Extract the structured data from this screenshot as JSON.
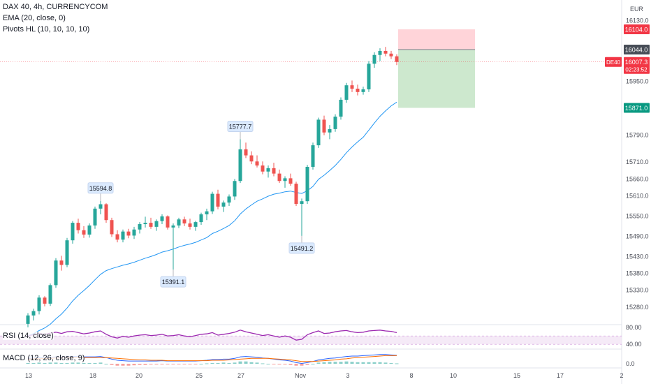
{
  "header": {
    "symbol_line": "DAX 40, 4h, CURRENCYCOM",
    "ema_line": "EMA (20, close, 0)",
    "pivots_line": "Pivots HL (10, 10, 10, 10)",
    "currency": "EUR"
  },
  "colors": {
    "up": "#26a69a",
    "down": "#ef5350",
    "ema": "#2196f3",
    "rsi": "#9c27b0",
    "macd": "#2962ff",
    "signal": "#ff6d00",
    "target_fill": "#c8e6c9",
    "stop_fill": "#ffcdd2",
    "target_tag": "#089981",
    "stop_tag": "#f23645",
    "entry_tag": "#474d57",
    "price_tag": "#f23645"
  },
  "price_axis": {
    "ticks": [
      "16130.0",
      "15950.0",
      "15790.0",
      "15710.0",
      "15660.0",
      "15610.0",
      "15550.0",
      "15490.0",
      "15430.0",
      "15380.0",
      "15330.0",
      "15280.0"
    ],
    "tags": {
      "stop": "16104.0",
      "entry": "16044.0",
      "symbol": "DE40",
      "last": "16007.3",
      "countdown": "02:23:52",
      "target": "15871.0"
    }
  },
  "time_axis": {
    "labels": [
      "13",
      "18",
      "20",
      "25",
      "27",
      "Nov",
      "3",
      "8",
      "10",
      "15",
      "17",
      "2"
    ]
  },
  "pivot_labels": {
    "h1": "15594.8",
    "h2": "15777.7",
    "l1": "15391.1",
    "l2": "15491.2"
  },
  "rsi": {
    "label": "RSI (14, close)",
    "ticks": [
      "80.00",
      "40.00"
    ]
  },
  "macd": {
    "label": "MACD (12, 26, close, 9)",
    "ticks": [
      "0.0"
    ]
  },
  "chart_data": {
    "type": "candlestick",
    "currency": "EUR",
    "candles": [
      [
        15230,
        15262,
        15220,
        15255
      ],
      [
        15255,
        15275,
        15240,
        15268
      ],
      [
        15268,
        15315,
        15258,
        15308
      ],
      [
        15308,
        15312,
        15282,
        15290
      ],
      [
        15290,
        15350,
        15283,
        15345
      ],
      [
        15345,
        15425,
        15337,
        15418
      ],
      [
        15418,
        15432,
        15388,
        15405
      ],
      [
        15405,
        15485,
        15398,
        15478
      ],
      [
        15478,
        15535,
        15468,
        15530
      ],
      [
        15530,
        15542,
        15498,
        15508
      ],
      [
        15508,
        15520,
        15485,
        15495
      ],
      [
        15495,
        15528,
        15486,
        15522
      ],
      [
        15522,
        15578,
        15512,
        15572
      ],
      [
        15572,
        15594.8,
        15555,
        15585
      ],
      [
        15585,
        15588,
        15530,
        15538
      ],
      [
        15538,
        15545,
        15488,
        15496
      ],
      [
        15496,
        15508,
        15472,
        15480
      ],
      [
        15480,
        15510,
        15472,
        15504
      ],
      [
        15504,
        15512,
        15484,
        15492
      ],
      [
        15492,
        15518,
        15482,
        15510
      ],
      [
        15510,
        15532,
        15498,
        15526
      ],
      [
        15526,
        15548,
        15516,
        15530
      ],
      [
        15530,
        15545,
        15512,
        15518
      ],
      [
        15518,
        15540,
        15506,
        15535
      ],
      [
        15535,
        15555,
        15526,
        15549
      ],
      [
        15549,
        15552,
        15510,
        15516
      ],
      [
        15516,
        15528,
        15391.1,
        15522
      ],
      [
        15522,
        15545,
        15514,
        15540
      ],
      [
        15540,
        15548,
        15520,
        15528
      ],
      [
        15528,
        15542,
        15510,
        15518
      ],
      [
        15518,
        15536,
        15506,
        15532
      ],
      [
        15532,
        15560,
        15524,
        15555
      ],
      [
        15555,
        15572,
        15538,
        15564
      ],
      [
        15564,
        15622,
        15556,
        15616
      ],
      [
        15616,
        15628,
        15570,
        15578
      ],
      [
        15578,
        15596,
        15562,
        15590
      ],
      [
        15590,
        15614,
        15580,
        15608
      ],
      [
        15608,
        15660,
        15598,
        15654
      ],
      [
        15654,
        15777.7,
        15648,
        15748
      ],
      [
        15748,
        15768,
        15722,
        15730
      ],
      [
        15730,
        15742,
        15704,
        15712
      ],
      [
        15712,
        15730,
        15694,
        15700
      ],
      [
        15700,
        15712,
        15674,
        15682
      ],
      [
        15682,
        15700,
        15664,
        15692
      ],
      [
        15692,
        15708,
        15668,
        15676
      ],
      [
        15676,
        15688,
        15648,
        15654
      ],
      [
        15654,
        15668,
        15634,
        15662
      ],
      [
        15662,
        15676,
        15640,
        15646
      ],
      [
        15646,
        15652,
        15580,
        15586
      ],
      [
        15586,
        15602,
        15491.2,
        15594
      ],
      [
        15594,
        15702,
        15586,
        15696
      ],
      [
        15696,
        15768,
        15688,
        15760
      ],
      [
        15760,
        15842,
        15752,
        15836
      ],
      [
        15836,
        15848,
        15790,
        15798
      ],
      [
        15798,
        15820,
        15778,
        15808
      ],
      [
        15808,
        15852,
        15800,
        15845
      ],
      [
        15845,
        15902,
        15836,
        15895
      ],
      [
        15895,
        15945,
        15886,
        15938
      ],
      [
        15938,
        15952,
        15918,
        15928
      ],
      [
        15928,
        15940,
        15908,
        15918
      ],
      [
        15918,
        15934,
        15910,
        15926
      ],
      [
        15926,
        16010,
        15918,
        16002
      ],
      [
        16002,
        16036,
        15990,
        16028
      ],
      [
        16028,
        16048,
        16010,
        16040
      ],
      [
        16040,
        16052,
        16024,
        16032
      ],
      [
        16032,
        16040,
        16016,
        16024
      ],
      [
        16024,
        16030,
        15998,
        16007.3
      ]
    ],
    "ema20": [
      15195,
      15201,
      15210,
      15218,
      15229,
      15245,
      15259,
      15277,
      15298,
      15315,
      15329,
      15344,
      15361,
      15377,
      15388,
      15394,
      15399,
      15404,
      15408,
      15413,
      15419,
      15425,
      15430,
      15436,
      15443,
      15447,
      15452,
      15458,
      15463,
      15467,
      15472,
      15479,
      15486,
      15498,
      15505,
      15513,
      15522,
      15536,
      15556,
      15571,
      15583,
      15594,
      15601,
      15609,
      15615,
      15618,
      15622,
      15624,
      15620,
      15617,
      15625,
      15638,
      15659,
      15671,
      15685,
      15700,
      15718,
      15738,
      15755,
      15770,
      15784,
      15805,
      15826,
      15846,
      15862,
      15877,
      15888
    ],
    "pivots": [
      {
        "type": "high",
        "value": 15594.8
      },
      {
        "type": "high",
        "value": 15777.7
      },
      {
        "type": "low",
        "value": 15391.1
      },
      {
        "type": "low",
        "value": 15491.2
      }
    ],
    "position": {
      "entry": 16044.0,
      "stop": 16104.0,
      "target": 15871.0
    },
    "last_price": 16007.3,
    "rsi": {
      "values": [
        60,
        63,
        66,
        64,
        67,
        69,
        66,
        70,
        71,
        68,
        65,
        67,
        70,
        72,
        64,
        58,
        55,
        59,
        57,
        60,
        62,
        63,
        61,
        62,
        64,
        60,
        61,
        63,
        60,
        58,
        61,
        64,
        65,
        68,
        62,
        64,
        66,
        69,
        74,
        70,
        67,
        64,
        61,
        63,
        60,
        57,
        60,
        57,
        50,
        52,
        63,
        68,
        72,
        66,
        67,
        70,
        72,
        73,
        70,
        68,
        69,
        72,
        73,
        74,
        72,
        71,
        68
      ],
      "band": [
        40,
        60
      ]
    },
    "macd": {
      "macd": [
        14,
        15,
        16,
        16,
        17,
        18,
        17,
        18,
        19,
        19,
        18,
        18,
        18,
        19,
        16,
        12,
        9,
        8,
        7,
        7,
        7,
        7,
        7,
        7,
        8,
        7,
        7,
        7,
        7,
        7,
        7,
        8,
        9,
        11,
        11,
        12,
        12,
        14,
        18,
        19,
        18,
        17,
        15,
        14,
        12,
        10,
        9,
        7,
        3,
        1,
        3,
        6,
        10,
        12,
        14,
        15,
        17,
        19,
        20,
        20,
        21,
        22,
        23,
        24,
        24,
        23,
        22
      ],
      "signal": [
        12,
        13,
        13,
        14,
        14,
        15,
        15,
        16,
        16,
        16,
        16,
        16,
        16,
        16,
        16,
        15,
        14,
        13,
        12,
        11,
        10,
        10,
        9,
        9,
        9,
        8,
        8,
        8,
        8,
        8,
        8,
        8,
        8,
        9,
        9,
        9,
        10,
        11,
        12,
        13,
        14,
        14,
        14,
        14,
        13,
        12,
        11,
        10,
        8,
        6,
        6,
        6,
        7,
        8,
        9,
        10,
        12,
        13,
        15,
        16,
        17,
        18,
        19,
        20,
        21,
        21,
        21
      ]
    }
  }
}
